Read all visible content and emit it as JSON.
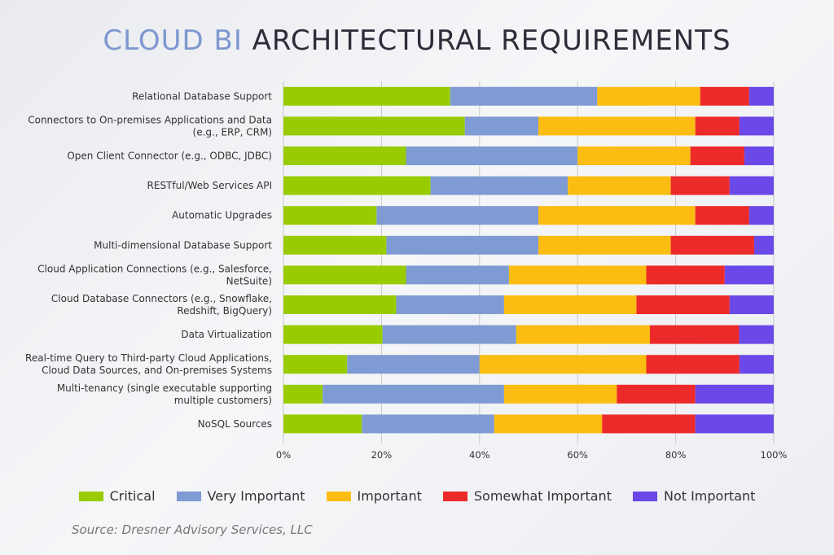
{
  "title_accent": "CLOUD BI",
  "title_rest": " ARCHITECTURAL REQUIREMENTS",
  "source": "Source: Dresner Advisory Services, LLC",
  "chart_data": {
    "type": "bar",
    "orientation": "horizontal",
    "stacked": true,
    "title": "CLOUD BI ARCHITECTURAL REQUIREMENTS",
    "xlim": [
      0,
      100
    ],
    "xticks": [
      "0%",
      "20%",
      "40%",
      "60%",
      "80%",
      "100%"
    ],
    "legend_position": "bottom",
    "categories": [
      [
        "Relational Database Support"
      ],
      [
        "Connectors to On-premises Applications and Data",
        "(e.g., ERP, CRM)"
      ],
      [
        "Open Client Connector (e.g., ODBC, JDBC)"
      ],
      [
        "RESTful/Web Services API"
      ],
      [
        "Automatic Upgrades"
      ],
      [
        "Multi-dimensional Database Support"
      ],
      [
        "Cloud Application Connections (e.g., Salesforce,",
        "NetSuite)"
      ],
      [
        "Cloud Database Connectors (e.g., Snowflake,",
        "Redshift, BigQuery)"
      ],
      [
        "Data Virtualization"
      ],
      [
        "Real-time Query to Third-party Cloud Applications,",
        "Cloud Data Sources, and On-premises  Systems"
      ],
      [
        "Multi-tenancy (single executable supporting",
        "multiple customers)"
      ],
      [
        "NoSQL Sources"
      ]
    ],
    "series": [
      {
        "name": "Critical",
        "color": "#99cc00",
        "values": [
          34,
          37,
          25,
          30,
          19,
          21,
          25,
          23,
          20,
          13,
          8,
          16
        ]
      },
      {
        "name": "Very Important",
        "color": "#7f9bd3",
        "values": [
          30,
          15,
          35,
          28,
          33,
          31,
          21,
          22,
          27,
          27,
          37,
          27
        ]
      },
      {
        "name": "Important",
        "color": "#fbbd12",
        "values": [
          21,
          32,
          23,
          21,
          32,
          27,
          28,
          27,
          27,
          34,
          23,
          22
        ]
      },
      {
        "name": "Somewhat Important",
        "color": "#ed2a2a",
        "values": [
          10,
          9,
          11,
          12,
          11,
          17,
          16,
          19,
          18,
          19,
          16,
          19
        ]
      },
      {
        "name": "Not Important",
        "color": "#6b48e8",
        "values": [
          5,
          7,
          6,
          9,
          5,
          4,
          10,
          9,
          7,
          7,
          16,
          16
        ]
      }
    ]
  }
}
